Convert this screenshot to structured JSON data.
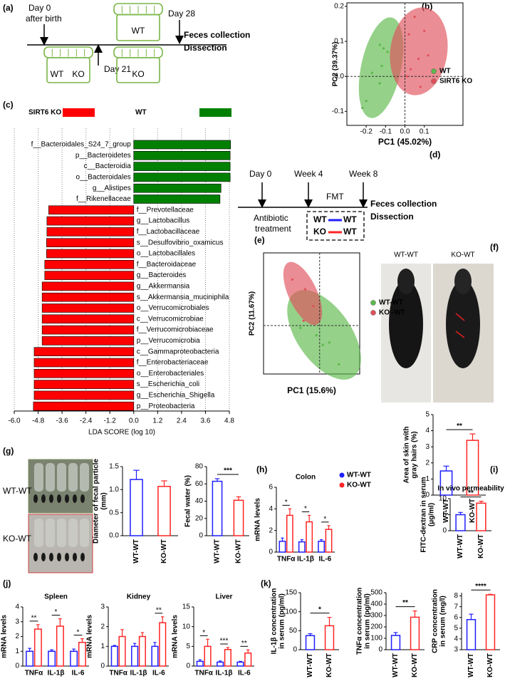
{
  "panel_labels": [
    "(a)",
    "(b)",
    "(c)",
    "(d)",
    "(e)",
    "(f)",
    "(g)",
    "(h)",
    "(i)",
    "(j)",
    "(k)"
  ],
  "timeline_a": {
    "day0": [
      "Day 0",
      "after birth"
    ],
    "day21": "Day 21",
    "day28": "Day 28",
    "end": [
      "Feces collection",
      "Dissection"
    ],
    "cage_top": "WT",
    "cage_left": [
      "WT",
      "KO"
    ],
    "cage_right": "KO"
  },
  "timeline_d": {
    "day0": "Day 0",
    "week4": "Week 4",
    "week8": "Week 8",
    "end": [
      "Feces collection",
      "Dissection"
    ],
    "fmt": "FMT",
    "antibiotic": [
      "Antibiotic",
      "treatment"
    ],
    "transfers": [
      [
        "WT",
        "WT"
      ],
      [
        "KO",
        "WT"
      ]
    ]
  },
  "photos": {
    "f": [
      "WT-WT",
      "KO-WT"
    ],
    "g": [
      "WT-WT",
      "KO-WT"
    ]
  },
  "chart_data": [
    {
      "type": "scatter",
      "xlabel": "PC1 (45.02%)",
      "ylabel": "PC2 (39.37%)",
      "xlim": [
        -0.3,
        0.3
      ],
      "ylim": [
        -0.14,
        0.21
      ],
      "xticks": [
        -0.2,
        -0.1,
        {
          "value": 0,
          "label": "0.0"
        },
        0.1
      ],
      "yticks": [
        -0.1,
        {
          "value": 0,
          "label": "0.0"
        },
        0.1,
        0.2
      ],
      "zero_lines": true,
      "series": [
        {
          "name": "WT",
          "color": "#5cb84a",
          "x": [
            -0.13,
            -0.11,
            -0.17,
            -0.2,
            -0.22,
            -0.12,
            -0.09,
            -0.13
          ],
          "y": [
            0.09,
            0.08,
            0.01,
            -0.07,
            -0.09,
            0.03,
            0.07,
            -0.02
          ]
        },
        {
          "name": "SIRT6 KO",
          "color": "#e0505a",
          "x": [
            0.05,
            0.02,
            0.1,
            0.07,
            0.12,
            0.03,
            0.01,
            0.08
          ],
          "y": [
            0.17,
            0.12,
            0.13,
            0.05,
            0.06,
            0.02,
            0,
            -0.03
          ]
        }
      ]
    },
    {
      "type": "hbar",
      "xlabel": "LDA SCORE (log 10)",
      "xlim": [
        -6,
        4.8
      ],
      "grid": true,
      "xticks": [
        {
          "value": -6,
          "label": "-6.0"
        },
        -4.8,
        -3.6,
        -2.4,
        -1.2,
        {
          "value": 0,
          "label": "0.0"
        },
        1.2,
        2.4,
        3.6,
        4.8
      ],
      "categories": [
        "f__Bacteroidales_S24_7_group",
        "p__Bacteroidetes",
        "c__Bacteroidia",
        "o__Bacteroidales",
        "g__Alistipes",
        "f__Rikenellaceae",
        "f__Prevotellaceae",
        "g__Lactobacillus",
        "f__Lactobacillaceae",
        "s__Desulfovibrio_oxamicus",
        "o__Lactobacillales",
        "f__Bacteroidaceae",
        "g__Bacteroides",
        "g__Akkermansia",
        "s__Akkermansia_muciniphila",
        "o__Verrucomicrobiales",
        "c__Verrucomicrobiae",
        "f__Verrucomicrobiaceae",
        "p__Verrucomicrobia",
        "c__Gammaproteobacteria",
        "f__Enterobacteriaceae",
        "o__Enterobacteriales",
        "s__Escherichia_coli",
        "g__Escherichia_Shigella",
        "p__Proteobacteria"
      ],
      "series": [
        {
          "name": "SIRT6 KO",
          "color": "#ff0000",
          "values": [
            null,
            null,
            null,
            null,
            null,
            null,
            -4.27,
            -4.36,
            -4.36,
            -4.38,
            -4.38,
            -4.47,
            -4.47,
            -4.6,
            -4.6,
            -4.6,
            -4.6,
            -4.6,
            -4.6,
            -5.0,
            -5.0,
            -5.0,
            -5.0,
            -5.0,
            -5.04
          ]
        },
        {
          "name": "WT",
          "color": "#008000",
          "values": [
            4.86,
            4.84,
            4.84,
            4.84,
            4.38,
            4.33,
            null,
            null,
            null,
            null,
            null,
            null,
            null,
            null,
            null,
            null,
            null,
            null,
            null,
            null,
            null,
            null,
            null,
            null,
            null
          ]
        }
      ]
    },
    {
      "type": "scatter",
      "xlabel": "PC1 (15.6%)",
      "ylabel": "PC2 (11.67%)",
      "xlim": [
        -0.35,
        0.25
      ],
      "ylim": [
        -0.2,
        0.3
      ],
      "zero_lines": true,
      "series": [
        {
          "name": "WT-WT",
          "color": "#5cb84a",
          "x": [
            -0.02,
            0.06,
            0.12,
            0.02,
            -0.12
          ],
          "y": [
            -0.04,
            -0.07,
            -0.16,
            -0.08,
            -0.01
          ]
        },
        {
          "name": "KO -WT",
          "color": "#e0505a",
          "x": [
            -0.17,
            -0.09,
            -0.04,
            -0.1
          ],
          "y": [
            0.19,
            0.15,
            0.08,
            0.02
          ]
        }
      ]
    },
    {
      "type": "bar",
      "ylabel": [
        "Area of skin with",
        "gray hairs (%)"
      ],
      "categories": [
        "WT-WT",
        "KO-WT"
      ],
      "values": [
        1.5,
        3.4
      ],
      "errors": [
        0.3,
        0.4
      ],
      "colors": [
        "#1f1fff",
        "#ff2424"
      ],
      "ylim": [
        0,
        5
      ],
      "yticks": [
        0,
        1,
        2,
        3,
        4,
        5
      ],
      "significance": "**"
    },
    {
      "type": "bar",
      "ylabel": [
        "Diameter of fecal particle",
        "(mm)"
      ],
      "categories": [
        "WT-WT",
        "KO-WT"
      ],
      "values": [
        1.22,
        1.07
      ],
      "errors": [
        0.2,
        0.12
      ],
      "colors": [
        "#1f1fff",
        "#ff2424"
      ],
      "ylim": [
        0,
        1.5
      ],
      "yticks": [
        {
          "value": 0,
          "label": "0.0"
        },
        0.5,
        {
          "value": 1,
          "label": "1.0"
        },
        1.5
      ]
    },
    {
      "type": "bar",
      "ylabel": [
        "Fecal water (%)"
      ],
      "categories": [
        "WT-WT",
        "KO-WT"
      ],
      "values": [
        63,
        41
      ],
      "errors": [
        3,
        4
      ],
      "colors": [
        "#1f1fff",
        "#ff2424"
      ],
      "ylim": [
        0,
        80
      ],
      "yticks": [
        0,
        20,
        40,
        60,
        80
      ],
      "significance": "***"
    },
    {
      "type": "bar",
      "title": "Colon",
      "ylabel": [
        "mRNA levels"
      ],
      "categories": [
        "TNFα",
        "IL-1β",
        "IL-6"
      ],
      "ylim": [
        0,
        6
      ],
      "yticks": [
        0,
        2,
        4,
        6
      ],
      "series": [
        {
          "name": "WT-WT",
          "color": "#1f1fff",
          "values": [
            1,
            0.95,
            1
          ],
          "errors": [
            0.3,
            0.2,
            0.15
          ]
        },
        {
          "name": "KO-WT",
          "color": "#ff2424",
          "values": [
            3.4,
            2.8,
            2.1
          ],
          "errors": [
            0.6,
            0.6,
            0.35
          ]
        }
      ],
      "significance": [
        "*",
        "*",
        "*"
      ]
    },
    {
      "type": "bar",
      "title": "In vivo permeability",
      "ylabel": [
        "FITC-dextran in serum",
        "(μg/ml)"
      ],
      "categories": [
        "WT-WT",
        "KO-WT"
      ],
      "values": [
        5,
        8.6
      ],
      "errors": [
        0.7,
        0.6
      ],
      "colors": [
        "#1f1fff",
        "#ff2424"
      ],
      "ylim": [
        0,
        10
      ],
      "yticks": [
        0,
        5,
        10
      ],
      "significance": "**"
    },
    {
      "type": "bar",
      "title": "Spleen",
      "ylabel": [
        "mRNA levels"
      ],
      "categories": [
        "TNFα",
        "IL-1β",
        "IL-6"
      ],
      "ylim": [
        0,
        4
      ],
      "yticks": [
        0,
        1,
        2,
        3,
        4
      ],
      "series": [
        {
          "color": "#1f1fff",
          "values": [
            1,
            1,
            1
          ],
          "errors": [
            0.2,
            0.1,
            0.15
          ]
        },
        {
          "color": "#ff2424",
          "values": [
            2.5,
            2.7,
            1.6
          ],
          "errors": [
            0.3,
            0.5,
            0.25
          ]
        }
      ],
      "significance": [
        "**",
        "*",
        "*"
      ]
    },
    {
      "type": "bar",
      "title": "Kidney",
      "ylabel": [
        "mRNA levels"
      ],
      "categories": [
        "TNFα",
        "IL-1β",
        "IL-6"
      ],
      "ylim": [
        0,
        3
      ],
      "yticks": [
        0,
        1,
        2,
        3
      ],
      "series": [
        {
          "color": "#1f1fff",
          "values": [
            1,
            1,
            1
          ],
          "errors": [
            0.05,
            0.15,
            0.2
          ]
        },
        {
          "color": "#ff2424",
          "values": [
            1.5,
            1.5,
            2.2
          ],
          "errors": [
            0.35,
            0.2,
            0.3
          ]
        }
      ],
      "significance": [
        null,
        null,
        "**"
      ]
    },
    {
      "type": "bar",
      "title": "Liver",
      "ylabel": [
        "mRNA levels"
      ],
      "categories": [
        "TNFα",
        "IL-1β",
        "IL-6"
      ],
      "ylim": [
        0,
        15
      ],
      "yticks": [
        0,
        5,
        10,
        15
      ],
      "series": [
        {
          "color": "#1f1fff",
          "values": [
            1.2,
            1,
            1
          ],
          "errors": [
            0.4,
            0.3,
            0.2
          ]
        },
        {
          "color": "#ff2424",
          "values": [
            5,
            4.2,
            3.3
          ],
          "errors": [
            1.8,
            0.5,
            0.8
          ]
        }
      ],
      "significance": [
        "*",
        "***",
        "**"
      ]
    },
    {
      "type": "bar",
      "ylabel": [
        "IL-1β concentration",
        "in serum (pg/ml)"
      ],
      "categories": [
        "WT-WT",
        "KO-WT"
      ],
      "values": [
        37,
        63
      ],
      "errors": [
        5,
        22
      ],
      "colors": [
        "#1f1fff",
        "#ff2424"
      ],
      "ylim": [
        0,
        150
      ],
      "yticks": [
        0,
        50,
        100,
        150
      ],
      "significance": "*"
    },
    {
      "type": "bar",
      "ylabel": [
        "TNFα concentration",
        "in serum (pg/ml)"
      ],
      "categories": [
        "WT-WT",
        "KO-WT"
      ],
      "values": [
        125,
        285
      ],
      "errors": [
        25,
        55
      ],
      "colors": [
        "#1f1fff",
        "#ff2424"
      ],
      "ylim": [
        0,
        500
      ],
      "yticks": [
        0,
        100,
        200,
        300,
        400,
        500
      ],
      "significance": "**"
    },
    {
      "type": "bar",
      "ylabel": [
        "CRP concentration",
        "in serum (mg/l)"
      ],
      "categories": [
        "WT-WT",
        "KO-WT"
      ],
      "values": [
        5.8,
        8.1
      ],
      "errors": [
        0.5,
        0.05
      ],
      "colors": [
        "#1f1fff",
        "#ff2424"
      ],
      "ylim": [
        3,
        8.3
      ],
      "yticks": [
        3,
        4,
        5,
        6,
        7,
        8
      ],
      "significance": "****"
    }
  ]
}
